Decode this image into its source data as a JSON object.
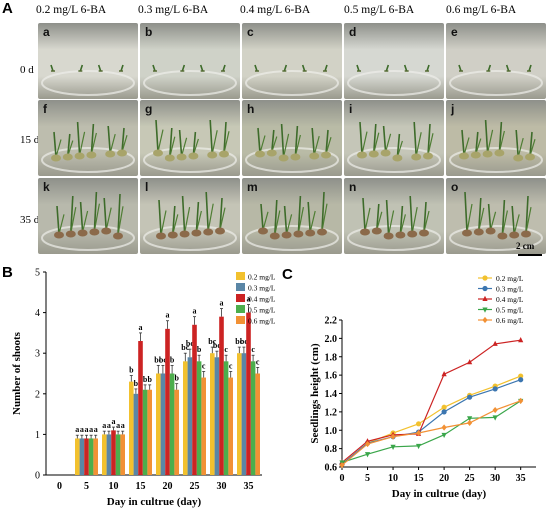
{
  "figure": {
    "panel_a": {
      "letter": "A",
      "columns": [
        "0.2 mg/L 6-BA",
        "0.3 mg/L 6-BA",
        "0.4 mg/L 6-BA",
        "0.5 mg/L 6-BA",
        "0.6 mg/L 6-BA"
      ],
      "rows": [
        "0 d",
        "15 d",
        "35 d"
      ],
      "tags": [
        "a",
        "b",
        "c",
        "d",
        "e",
        "f",
        "g",
        "h",
        "i",
        "j",
        "k",
        "l",
        "m",
        "n",
        "o"
      ],
      "scale_bar": "2 cm"
    },
    "panel_b": {
      "letter": "B"
    },
    "panel_c": {
      "letter": "C"
    }
  },
  "chart_data": [
    {
      "type": "bar",
      "xlabel": "Day in cultrue (day)",
      "ylabel": "Number of shoots",
      "categories": [
        "0",
        "5",
        "10",
        "15",
        "20",
        "25",
        "30",
        "35"
      ],
      "ylim": [
        0,
        5
      ],
      "yticks": [
        "0",
        "1",
        "2",
        "3",
        "4",
        "5"
      ],
      "legend_position": "top-right",
      "series": [
        {
          "name": "0.2 mg/L",
          "color": "#f2c12e",
          "values": [
            null,
            0.9,
            1.0,
            2.3,
            2.5,
            2.8,
            3.0,
            3.0
          ],
          "errors": [
            null,
            0.08,
            0.08,
            0.15,
            0.2,
            0.2,
            0.15,
            0.15
          ],
          "letters": [
            "",
            "a",
            "a",
            "b",
            "bc",
            "bc",
            "bc",
            "bc"
          ]
        },
        {
          "name": "0.3 mg/L",
          "color": "#5a86a6",
          "values": [
            null,
            0.9,
            1.0,
            2.0,
            2.5,
            2.9,
            2.9,
            3.0
          ],
          "errors": [
            null,
            0.08,
            0.08,
            0.12,
            0.2,
            0.2,
            0.15,
            0.15
          ],
          "letters": [
            "",
            "a",
            "a",
            "b",
            "bc",
            "bc",
            "bc",
            "bc"
          ]
        },
        {
          "name": "0.4 mg/L",
          "color": "#cc2323",
          "values": [
            null,
            0.9,
            1.1,
            3.3,
            3.6,
            3.7,
            3.9,
            4.0
          ],
          "errors": [
            null,
            0.08,
            0.08,
            0.2,
            0.2,
            0.2,
            0.2,
            0.2
          ],
          "letters": [
            "",
            "a",
            "a",
            "a",
            "a",
            "a",
            "a",
            "a"
          ]
        },
        {
          "name": "0.5 mg/L",
          "color": "#4cae4c",
          "values": [
            null,
            0.9,
            1.0,
            2.1,
            2.5,
            2.8,
            2.8,
            2.8
          ],
          "errors": [
            null,
            0.08,
            0.08,
            0.12,
            0.2,
            0.15,
            0.15,
            0.15
          ],
          "letters": [
            "",
            "a",
            "a",
            "b",
            "b",
            "b",
            "c",
            "c"
          ]
        },
        {
          "name": "0.6 mg/L",
          "color": "#f29135",
          "values": [
            null,
            0.9,
            1.0,
            2.1,
            2.1,
            2.4,
            2.4,
            2.5
          ],
          "errors": [
            null,
            0.08,
            0.08,
            0.12,
            0.15,
            0.15,
            0.15,
            0.15
          ],
          "letters": [
            "",
            "a",
            "a",
            "b",
            "b",
            "c",
            "c",
            "c"
          ]
        }
      ]
    },
    {
      "type": "line",
      "xlabel": "Day in cultrue (day)",
      "ylabel": "Seedlings height (cm)",
      "x": [
        0,
        5,
        10,
        15,
        20,
        25,
        30,
        35
      ],
      "xticks": [
        "0",
        "5",
        "10",
        "15",
        "20",
        "25",
        "30",
        "35"
      ],
      "ylim": [
        0.6,
        2.2
      ],
      "yticks": [
        "0.6",
        "0.8",
        "1.0",
        "1.2",
        "1.4",
        "1.6",
        "1.8",
        "2.0",
        "2.2"
      ],
      "legend_position": "top-right",
      "series": [
        {
          "name": "0.2 mg/L",
          "color": "#f2c12e",
          "marker": "circle",
          "values": [
            0.63,
            0.86,
            0.97,
            1.07,
            1.25,
            1.38,
            1.48,
            1.59
          ]
        },
        {
          "name": "0.3 mg/L",
          "color": "#3c76b0",
          "marker": "circle",
          "values": [
            0.63,
            0.86,
            0.93,
            0.98,
            1.2,
            1.36,
            1.45,
            1.55
          ]
        },
        {
          "name": "0.4 mg/L",
          "color": "#cc2323",
          "marker": "triangle-up",
          "values": [
            0.65,
            0.88,
            0.95,
            0.96,
            1.61,
            1.74,
            1.94,
            1.98
          ]
        },
        {
          "name": "0.5 mg/L",
          "color": "#3aa64a",
          "marker": "triangle-down",
          "values": [
            0.65,
            0.74,
            0.82,
            0.83,
            0.95,
            1.13,
            1.14,
            1.32
          ]
        },
        {
          "name": "0.6 mg/L",
          "color": "#f29135",
          "marker": "diamond",
          "values": [
            0.62,
            0.85,
            0.93,
            0.97,
            1.03,
            1.08,
            1.22,
            1.32
          ]
        }
      ]
    }
  ]
}
